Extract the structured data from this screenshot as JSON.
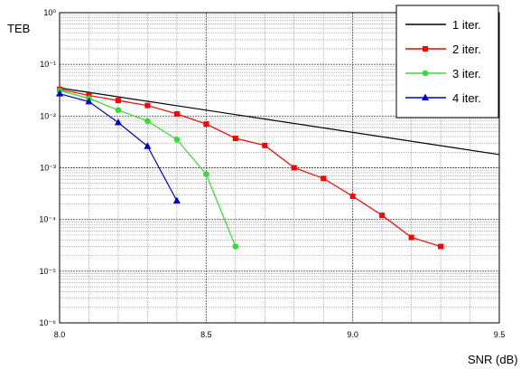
{
  "chart_data": {
    "type": "line",
    "title": "",
    "xlabel": "SNR (dB)",
    "ylabel": "TEB",
    "xscale": "linear",
    "yscale": "log",
    "xlim": [
      8.0,
      9.5
    ],
    "ylim": [
      1e-06,
      1
    ],
    "x_ticks": [
      8.0,
      8.5,
      9.0,
      9.5
    ],
    "x_tick_labels": [
      "8.0",
      "8.5",
      "9.0",
      "9.5"
    ],
    "y_ticks": [
      1e-06,
      1e-05,
      0.0001,
      0.001,
      0.01,
      0.1,
      1
    ],
    "y_tick_labels": [
      "10⁻⁶",
      "10⁻⁵",
      "10⁻⁴",
      "10⁻³",
      "10⁻²",
      "10⁻¹",
      "10⁰"
    ],
    "grid": true,
    "legend_position": "top-right",
    "series": [
      {
        "name": "1 iter.",
        "color": "#000000",
        "marker": "none",
        "x": [
          8.0,
          9.5
        ],
        "y": [
          0.035,
          0.0018
        ]
      },
      {
        "name": "2 iter.",
        "color": "#ff0000",
        "marker": "square",
        "x": [
          8.0,
          8.1,
          8.2,
          8.3,
          8.4,
          8.5,
          8.6,
          8.7,
          8.8,
          8.9,
          9.0,
          9.1,
          9.2,
          9.3
        ],
        "y": [
          0.033,
          0.025,
          0.02,
          0.016,
          0.011,
          0.007,
          0.0037,
          0.0027,
          0.001,
          0.00062,
          0.00028,
          0.00012,
          4.5e-05,
          3e-05
        ]
      },
      {
        "name": "3 iter.",
        "color": "#33dd33",
        "marker": "circle",
        "x": [
          8.0,
          8.1,
          8.2,
          8.3,
          8.4,
          8.5,
          8.6
        ],
        "y": [
          0.031,
          0.022,
          0.013,
          0.008,
          0.0035,
          0.00075,
          3e-05
        ]
      },
      {
        "name": "4 iter.",
        "color": "#0000cc",
        "marker": "triangle",
        "x": [
          8.0,
          8.1,
          8.2,
          8.3,
          8.4
        ],
        "y": [
          0.027,
          0.019,
          0.0075,
          0.0026,
          0.00023
        ]
      }
    ]
  }
}
